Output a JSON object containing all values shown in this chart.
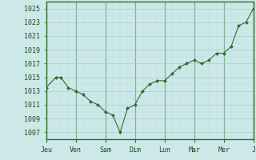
{
  "x_values": [
    0,
    0.33,
    0.5,
    0.75,
    1.0,
    1.25,
    1.5,
    1.75,
    2.0,
    2.25,
    2.5,
    2.75,
    3.0,
    3.25,
    3.5,
    3.75,
    4.0,
    4.25,
    4.5,
    4.75,
    5.0,
    5.25,
    5.5,
    5.75,
    6.0,
    6.25,
    6.5,
    6.75,
    7.0
  ],
  "y_values": [
    1013.5,
    1015.0,
    1015.0,
    1013.5,
    1013.0,
    1012.5,
    1011.5,
    1011.0,
    1010.0,
    1009.5,
    1007.0,
    1010.5,
    1011.0,
    1013.0,
    1014.0,
    1014.5,
    1014.5,
    1015.5,
    1016.5,
    1017.0,
    1017.5,
    1017.0,
    1017.5,
    1018.5,
    1018.5,
    1019.5,
    1022.5,
    1023.0,
    1025.0
  ],
  "tick_positions": [
    0.0,
    1.0,
    2.0,
    3.0,
    4.0,
    5.0,
    6.0,
    7.0
  ],
  "tick_labels": [
    "Jeu",
    "Ven",
    "Sam",
    "Dim",
    "Lun",
    "Mar",
    "Mer",
    "J"
  ],
  "ytick_values": [
    1007,
    1009,
    1011,
    1013,
    1015,
    1017,
    1019,
    1021,
    1023,
    1025
  ],
  "ylim": [
    1006,
    1026
  ],
  "xlim": [
    0.0,
    7.0
  ],
  "line_color": "#2d6e2d",
  "marker_color": "#2d6e2d",
  "bg_color": "#cce8e8",
  "grid_major_color": "#aacccc",
  "grid_minor_color": "#bbdddd",
  "tick_fontsize": 6.0,
  "figsize": [
    3.2,
    2.0
  ],
  "dpi": 100
}
